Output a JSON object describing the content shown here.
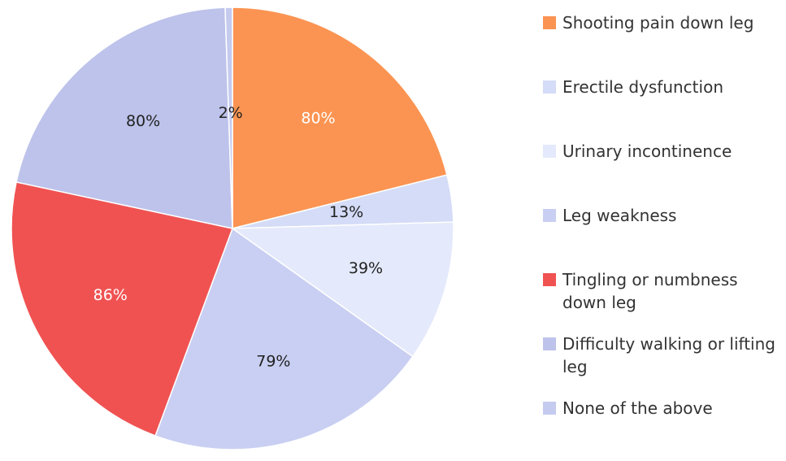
{
  "chart_data": {
    "type": "pie",
    "categories": [
      "Shooting pain down leg",
      "Erectile dysfunction",
      "Urinary incontinence",
      "Leg weakness",
      "Tingling or numbness down leg",
      "Difficulty walking or lifting leg",
      "None of the above"
    ],
    "values": [
      80,
      13,
      39,
      79,
      86,
      80,
      2
    ],
    "value_labels": [
      "80%",
      "13%",
      "39%",
      "79%",
      "86%",
      "80%",
      "2%"
    ],
    "colors": [
      "#fb9452",
      "#d4dcf7",
      "#e4e9fb",
      "#c9cff2",
      "#f05252",
      "#bdc3ea",
      "#c5cbef"
    ],
    "legend": "right"
  }
}
